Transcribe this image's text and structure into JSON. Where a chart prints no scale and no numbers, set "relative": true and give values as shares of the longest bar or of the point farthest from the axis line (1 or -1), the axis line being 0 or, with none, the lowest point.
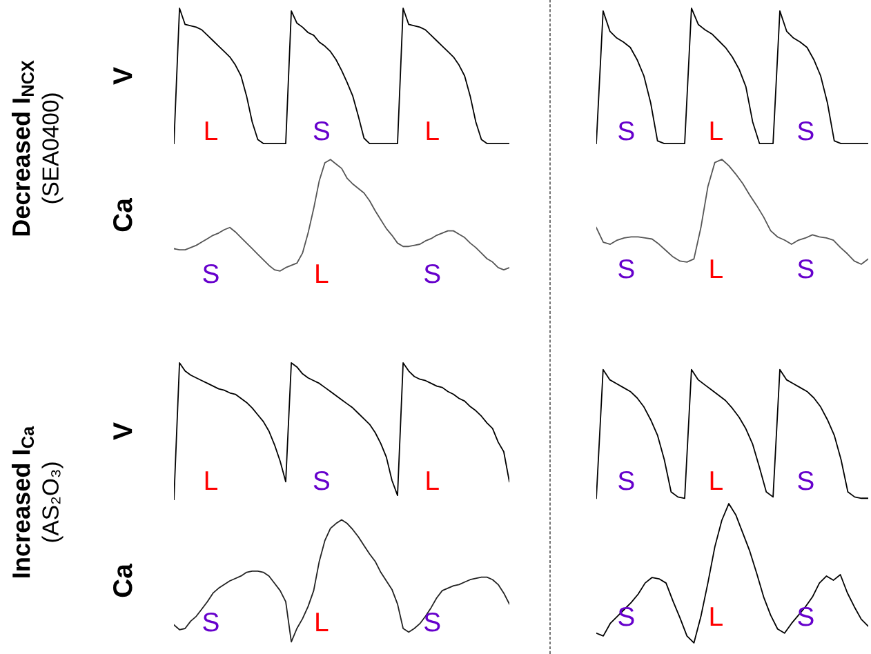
{
  "chart_data": [
    {
      "type": "line",
      "title": "Decreased I$_{NCX}$",
      "subtitle": "(SEA0400)",
      "ylabel": "V",
      "relative": true,
      "tick_labels": false,
      "categories": [
        null,
        null,
        null,
        null,
        null,
        null,
        null,
        null,
        null,
        null,
        null,
        null,
        null,
        null,
        null,
        null,
        null,
        null,
        null,
        null,
        null,
        null,
        null,
        null,
        null,
        null,
        null,
        null,
        null,
        null,
        null,
        null,
        null,
        null,
        null,
        null,
        null,
        null,
        null,
        null,
        null,
        null,
        null,
        null,
        null,
        null,
        null,
        null,
        null,
        null,
        null,
        null,
        null,
        null,
        null,
        null,
        null,
        null,
        null,
        null,
        null
      ],
      "series": [
        {
          "color": "#000000",
          "values": [
            0,
            1.0,
            0.88,
            0.87,
            0.86,
            0.84,
            0.8,
            0.76,
            0.72,
            0.68,
            0.64,
            0.58,
            0.5,
            0.35,
            0.16,
            0.03,
            0,
            0,
            0,
            0,
            0,
            0.98,
            0.89,
            0.86,
            0.82,
            0.8,
            0.75,
            0.72,
            0.68,
            0.62,
            0.54,
            0.45,
            0.35,
            0.2,
            0.04,
            0,
            0,
            0,
            0,
            0,
            0,
            1.0,
            0.88,
            0.87,
            0.86,
            0.84,
            0.8,
            0.76,
            0.72,
            0.68,
            0.64,
            0.58,
            0.5,
            0.35,
            0.16,
            0.03,
            0,
            0,
            0,
            0,
            0
          ]
        }
      ],
      "annotations": [
        "L",
        "S",
        "L"
      ]
    },
    {
      "type": "line",
      "relative": true,
      "tick_labels": false,
      "categories": [
        null,
        null,
        null,
        null,
        null,
        null,
        null,
        null,
        null,
        null,
        null,
        null,
        null,
        null,
        null,
        null,
        null,
        null,
        null,
        null,
        null,
        null,
        null,
        null,
        null,
        null,
        null,
        null,
        null,
        null,
        null,
        null,
        null,
        null,
        null,
        null,
        null,
        null,
        null,
        null,
        null
      ],
      "series": [
        {
          "color": "#000000",
          "values": [
            0,
            0.98,
            0.83,
            0.78,
            0.75,
            0.71,
            0.62,
            0.5,
            0.3,
            0.02,
            0,
            0,
            0,
            0,
            1.0,
            0.88,
            0.84,
            0.81,
            0.76,
            0.71,
            0.64,
            0.55,
            0.42,
            0.16,
            0,
            0,
            0,
            0.98,
            0.83,
            0.78,
            0.75,
            0.71,
            0.62,
            0.5,
            0.3,
            0.02,
            0,
            0,
            0,
            0,
            0
          ]
        }
      ],
      "annotations": [
        "S",
        "L",
        "S"
      ]
    },
    {
      "type": "line",
      "ylabel": "Ca",
      "relative": true,
      "tick_labels": false,
      "categories": [
        null,
        null,
        null,
        null,
        null,
        null,
        null,
        null,
        null,
        null,
        null,
        null,
        null,
        null,
        null,
        null,
        null,
        null,
        null,
        null,
        null,
        null,
        null,
        null,
        null,
        null,
        null,
        null,
        null,
        null,
        null,
        null,
        null,
        null,
        null,
        null,
        null,
        null,
        null,
        null,
        null,
        null,
        null,
        null,
        null,
        null,
        null,
        null,
        null,
        null,
        null,
        null,
        null,
        null,
        null,
        null,
        null,
        null,
        null,
        null,
        null
      ],
      "series": [
        {
          "color": "#555555",
          "values": [
            0.2,
            0.19,
            0.19,
            0.21,
            0.23,
            0.26,
            0.29,
            0.32,
            0.34,
            0.37,
            0.39,
            0.35,
            0.3,
            0.25,
            0.2,
            0.15,
            0.1,
            0.05,
            0.01,
            0,
            0.03,
            0.05,
            0.07,
            0.16,
            0.34,
            0.56,
            0.81,
            0.97,
            1.0,
            0.96,
            0.92,
            0.83,
            0.78,
            0.74,
            0.7,
            0.63,
            0.54,
            0.46,
            0.38,
            0.32,
            0.25,
            0.22,
            0.22,
            0.23,
            0.24,
            0.27,
            0.29,
            0.32,
            0.34,
            0.36,
            0.36,
            0.33,
            0.3,
            0.25,
            0.21,
            0.16,
            0.11,
            0.08,
            0.03,
            0.01,
            0.03
          ]
        }
      ],
      "annotations": [
        "S",
        "L",
        "S"
      ]
    },
    {
      "type": "line",
      "relative": true,
      "tick_labels": false,
      "categories": [
        null,
        null,
        null,
        null,
        null,
        null,
        null,
        null,
        null,
        null,
        null,
        null,
        null,
        null,
        null,
        null,
        null,
        null,
        null,
        null,
        null,
        null,
        null,
        null,
        null,
        null,
        null,
        null,
        null,
        null,
        null,
        null,
        null,
        null,
        null,
        null,
        null,
        null,
        null,
        null
      ],
      "series": [
        {
          "color": "#555555",
          "values": [
            0.35,
            0.21,
            0.19,
            0.23,
            0.25,
            0.26,
            0.26,
            0.25,
            0.24,
            0.19,
            0.13,
            0.07,
            0.03,
            0.02,
            0.05,
            0.35,
            0.74,
            0.97,
            1.0,
            0.94,
            0.86,
            0.77,
            0.66,
            0.56,
            0.45,
            0.32,
            0.26,
            0.23,
            0.19,
            0.23,
            0.25,
            0.28,
            0.26,
            0.25,
            0.23,
            0.16,
            0.1,
            0.03,
            0,
            0.05
          ]
        }
      ],
      "annotations": [
        "S",
        "L",
        "S"
      ]
    },
    {
      "type": "line",
      "title": "Increased I$_{Ca}$",
      "subtitle": "(AS₂O₃)",
      "ylabel": "V",
      "relative": true,
      "tick_labels": false,
      "categories": [
        null,
        null,
        null,
        null,
        null,
        null,
        null,
        null,
        null,
        null,
        null,
        null,
        null,
        null,
        null,
        null,
        null,
        null,
        null,
        null,
        null,
        null,
        null,
        null,
        null,
        null,
        null,
        null,
        null,
        null,
        null,
        null,
        null,
        null,
        null,
        null,
        null,
        null,
        null,
        null,
        null,
        null,
        null,
        null,
        null,
        null,
        null,
        null,
        null,
        null,
        null,
        null,
        null,
        null,
        null,
        null,
        null,
        null,
        null,
        null,
        null
      ],
      "series": [
        {
          "color": "#000000",
          "values": [
            0,
            1.0,
            0.94,
            0.91,
            0.89,
            0.87,
            0.85,
            0.83,
            0.81,
            0.8,
            0.78,
            0.77,
            0.74,
            0.71,
            0.67,
            0.62,
            0.57,
            0.5,
            0.4,
            0.28,
            0.13,
            1.0,
            0.97,
            0.92,
            0.89,
            0.87,
            0.85,
            0.82,
            0.79,
            0.76,
            0.73,
            0.7,
            0.67,
            0.63,
            0.59,
            0.55,
            0.49,
            0.41,
            0.31,
            0.14,
            0.03,
            1.0,
            0.94,
            0.9,
            0.88,
            0.87,
            0.85,
            0.83,
            0.82,
            0.79,
            0.77,
            0.74,
            0.72,
            0.68,
            0.65,
            0.61,
            0.56,
            0.52,
            0.42,
            0.35,
            0.13
          ]
        }
      ],
      "annotations": [
        "L",
        "S",
        "L"
      ]
    },
    {
      "type": "line",
      "relative": true,
      "tick_labels": false,
      "categories": [
        null,
        null,
        null,
        null,
        null,
        null,
        null,
        null,
        null,
        null,
        null,
        null,
        null,
        null,
        null,
        null,
        null,
        null,
        null,
        null,
        null,
        null,
        null,
        null,
        null,
        null,
        null,
        null,
        null,
        null,
        null,
        null,
        null,
        null,
        null,
        null,
        null,
        null,
        null,
        null,
        null
      ],
      "series": [
        {
          "color": "#000000",
          "values": [
            0,
            1.0,
            0.92,
            0.89,
            0.86,
            0.83,
            0.78,
            0.71,
            0.61,
            0.49,
            0.3,
            0.05,
            0.01,
            0,
            1.0,
            0.92,
            0.88,
            0.84,
            0.8,
            0.76,
            0.7,
            0.63,
            0.54,
            0.42,
            0.24,
            0.05,
            0.01,
            1.0,
            0.92,
            0.89,
            0.86,
            0.83,
            0.78,
            0.71,
            0.61,
            0.49,
            0.3,
            0.05,
            0.01,
            0,
            0
          ]
        }
      ],
      "annotations": [
        "S",
        "L",
        "S"
      ]
    },
    {
      "type": "line",
      "ylabel": "Ca",
      "relative": true,
      "tick_labels": false,
      "categories": [
        null,
        null,
        null,
        null,
        null,
        null,
        null,
        null,
        null,
        null,
        null,
        null,
        null,
        null,
        null,
        null,
        null,
        null,
        null,
        null,
        null,
        null,
        null,
        null,
        null,
        null,
        null,
        null,
        null,
        null,
        null,
        null,
        null,
        null,
        null,
        null,
        null,
        null,
        null,
        null,
        null,
        null,
        null,
        null,
        null,
        null,
        null,
        null,
        null,
        null,
        null,
        null,
        null,
        null,
        null,
        null,
        null,
        null,
        null,
        null,
        null
      ],
      "series": [
        {
          "color": "#222222",
          "values": [
            0.14,
            0.1,
            0.11,
            0.17,
            0.21,
            0.27,
            0.33,
            0.4,
            0.44,
            0.47,
            0.5,
            0.52,
            0.54,
            0.57,
            0.58,
            0.58,
            0.57,
            0.54,
            0.48,
            0.42,
            0.33,
            0,
            0.11,
            0.19,
            0.29,
            0.42,
            0.66,
            0.83,
            0.93,
            0.97,
            1.0,
            0.97,
            0.92,
            0.86,
            0.79,
            0.72,
            0.66,
            0.57,
            0.5,
            0.43,
            0.31,
            0.11,
            0.08,
            0.11,
            0.15,
            0.21,
            0.28,
            0.36,
            0.42,
            0.44,
            0.46,
            0.47,
            0.49,
            0.51,
            0.52,
            0.53,
            0.53,
            0.51,
            0.47,
            0.4,
            0.31
          ]
        }
      ],
      "annotations": [
        "S",
        "L",
        "S"
      ]
    },
    {
      "type": "line",
      "relative": true,
      "tick_labels": false,
      "categories": [
        null,
        null,
        null,
        null,
        null,
        null,
        null,
        null,
        null,
        null,
        null,
        null,
        null,
        null,
        null,
        null,
        null,
        null,
        null,
        null,
        null,
        null,
        null,
        null,
        null,
        null,
        null,
        null,
        null,
        null,
        null,
        null,
        null,
        null,
        null,
        null,
        null,
        null,
        null,
        null
      ],
      "series": [
        {
          "color": "#000000",
          "values": [
            0.07,
            0.05,
            0.14,
            0.19,
            0.24,
            0.29,
            0.35,
            0.43,
            0.47,
            0.46,
            0.43,
            0.3,
            0.18,
            0.05,
            0,
            0.19,
            0.43,
            0.69,
            0.88,
            1.0,
            0.92,
            0.79,
            0.66,
            0.5,
            0.33,
            0.2,
            0.1,
            0.07,
            0.14,
            0.2,
            0.26,
            0.33,
            0.43,
            0.48,
            0.45,
            0.49,
            0.36,
            0.26,
            0.17,
            0.12
          ]
        }
      ],
      "annotations": [
        "S",
        "L",
        "S"
      ]
    }
  ]
}
